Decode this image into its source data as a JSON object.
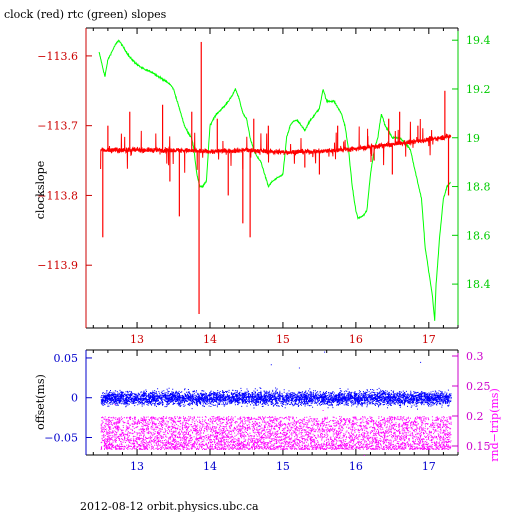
{
  "footer": "2012-08-12  orbit.physics.ubc.ca",
  "colors": {
    "clock": "#ff0000",
    "rtc": "#00ff00",
    "offset": "#0000ff",
    "rtt": "#ff00ff",
    "frame": "#000000"
  },
  "chart_data": [
    {
      "type": "line",
      "title": "clock (red) rtc (green) slopes",
      "ylabel": "clockslope",
      "xlim": [
        12.3,
        17.4
      ],
      "x_ticks": [
        13,
        14,
        15,
        16,
        17
      ],
      "ylim_left": [
        -113.99,
        -113.56
      ],
      "left_ticks": [
        -113.6,
        -113.7,
        -113.8,
        -113.9
      ],
      "left_tick_labels": [
        "−113.6",
        "−113.7",
        "−113.8",
        "−113.9"
      ],
      "ylim_right": [
        18.22,
        19.45
      ],
      "right_ticks": [
        19.4,
        19.2,
        19,
        18.8,
        18.6,
        18.4
      ],
      "right_tick_labels": [
        "19.4",
        "19.2",
        "19",
        "18.8",
        "18.6",
        "18.4"
      ],
      "series": [
        {
          "name": "clock",
          "axis": "left",
          "baseline": -113.735,
          "noise": 0.006,
          "x": [
            12.5,
            13.0,
            13.5,
            14.0,
            14.5,
            15.0,
            15.5,
            16.0,
            16.5,
            17.0,
            17.3
          ],
          "y": [
            -113.735,
            -113.735,
            -113.735,
            -113.737,
            -113.735,
            -113.738,
            -113.737,
            -113.733,
            -113.727,
            -113.72,
            -113.715
          ],
          "spikes": [
            {
              "x": 12.53,
              "y": -113.86
            },
            {
              "x": 12.6,
              "y": -113.7
            },
            {
              "x": 12.9,
              "y": -113.68
            },
            {
              "x": 13.35,
              "y": -113.67
            },
            {
              "x": 13.45,
              "y": -113.78
            },
            {
              "x": 13.58,
              "y": -113.83
            },
            {
              "x": 13.75,
              "y": -113.68
            },
            {
              "x": 13.85,
              "y": -113.97
            },
            {
              "x": 13.88,
              "y": -113.58
            },
            {
              "x": 14.1,
              "y": -113.69
            },
            {
              "x": 14.25,
              "y": -113.8
            },
            {
              "x": 14.45,
              "y": -113.84
            },
            {
              "x": 14.55,
              "y": -113.86
            },
            {
              "x": 14.6,
              "y": -113.69
            },
            {
              "x": 14.8,
              "y": -113.7
            },
            {
              "x": 15.3,
              "y": -113.76
            },
            {
              "x": 15.5,
              "y": -113.77
            },
            {
              "x": 15.75,
              "y": -113.7
            },
            {
              "x": 16.25,
              "y": -113.75
            },
            {
              "x": 16.45,
              "y": -113.69
            },
            {
              "x": 16.5,
              "y": -113.77
            },
            {
              "x": 16.6,
              "y": -113.68
            },
            {
              "x": 16.85,
              "y": -113.7
            },
            {
              "x": 17.22,
              "y": -113.65
            },
            {
              "x": 17.27,
              "y": -113.8
            }
          ]
        },
        {
          "name": "rtc",
          "axis": "right",
          "noise": 0.006,
          "x": [
            12.48,
            12.52,
            12.56,
            12.6,
            12.7,
            12.75,
            12.9,
            13.0,
            13.1,
            13.2,
            13.3,
            13.4,
            13.45,
            13.5,
            13.55,
            13.6,
            13.65,
            13.7,
            13.75,
            13.78,
            13.82,
            13.86,
            13.9,
            13.95,
            14.0,
            14.05,
            14.1,
            14.2,
            14.3,
            14.35,
            14.4,
            14.45,
            14.5,
            14.55,
            14.6,
            14.65,
            14.7,
            14.75,
            14.8,
            14.85,
            14.9,
            15.0,
            15.05,
            15.1,
            15.15,
            15.2,
            15.25,
            15.3,
            15.35,
            15.4,
            15.45,
            15.5,
            15.55,
            15.6,
            15.7,
            15.8,
            15.85,
            15.9,
            15.95,
            16.0,
            16.03,
            16.1,
            16.15,
            16.2,
            16.25,
            16.3,
            16.35,
            16.4,
            16.5,
            16.6,
            16.7,
            16.75,
            16.8,
            16.9,
            16.95,
            17.0,
            17.05,
            17.08,
            17.1,
            17.15,
            17.2,
            17.25,
            17.3
          ],
          "y": [
            19.35,
            19.3,
            19.25,
            19.32,
            19.38,
            19.4,
            19.33,
            19.3,
            19.28,
            19.27,
            19.25,
            19.23,
            19.22,
            19.2,
            19.15,
            19.1,
            19.05,
            19.02,
            19.0,
            18.95,
            18.85,
            18.8,
            18.8,
            18.82,
            19.05,
            19.08,
            19.1,
            19.13,
            19.17,
            19.2,
            19.16,
            19.1,
            19.08,
            19.0,
            18.95,
            18.92,
            18.9,
            18.85,
            18.8,
            18.82,
            18.83,
            18.85,
            19.0,
            19.05,
            19.07,
            19.07,
            19.05,
            19.03,
            19.06,
            19.08,
            19.1,
            19.12,
            19.2,
            19.15,
            19.15,
            19.1,
            19.05,
            18.95,
            18.8,
            18.7,
            18.67,
            18.68,
            18.7,
            18.85,
            18.95,
            19.0,
            19.1,
            19.05,
            19.0,
            19.0,
            18.97,
            18.95,
            18.88,
            18.75,
            18.55,
            18.45,
            18.35,
            18.25,
            18.4,
            18.6,
            18.75,
            18.8,
            18.82
          ]
        }
      ]
    },
    {
      "type": "scatter",
      "title": "",
      "ylabel_left": "offset(ms)",
      "ylabel_right": "rnd−trip(ms)",
      "xlim": [
        12.3,
        17.4
      ],
      "x_ticks": [
        13,
        14,
        15,
        16,
        17
      ],
      "ylim_left": [
        -0.072,
        0.06
      ],
      "left_ticks": [
        0.05,
        0,
        -0.05
      ],
      "left_tick_labels": [
        "0.05",
        "0",
        "−0.05"
      ],
      "ylim_right": [
        0.135,
        0.31
      ],
      "right_ticks": [
        0.3,
        0.25,
        0.2,
        0.15
      ],
      "right_tick_labels": [
        "0.3",
        "0.25",
        "0.2",
        "0.15"
      ],
      "series": [
        {
          "name": "offset",
          "axis": "left",
          "x_range": [
            12.5,
            17.3
          ],
          "center": 0.0,
          "band": [
            -0.018,
            0.015
          ],
          "outliers": [
            0.058,
            0.045,
            0.038,
            -0.035,
            0.042
          ]
        },
        {
          "name": "round-trip",
          "axis": "right",
          "x_range": [
            12.5,
            17.3
          ],
          "center": 0.16,
          "band": [
            0.145,
            0.2
          ],
          "outliers": [
            0.21,
            0.22,
            0.135
          ]
        }
      ]
    }
  ]
}
